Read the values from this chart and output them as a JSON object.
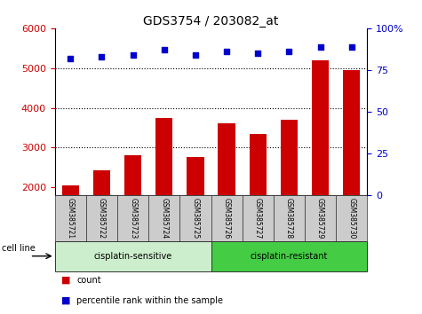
{
  "title": "GDS3754 / 203082_at",
  "samples": [
    "GSM385721",
    "GSM385722",
    "GSM385723",
    "GSM385724",
    "GSM385725",
    "GSM385726",
    "GSM385727",
    "GSM385728",
    "GSM385729",
    "GSM385730"
  ],
  "bar_values": [
    2050,
    2420,
    2800,
    3750,
    2770,
    3600,
    3350,
    3700,
    5200,
    4950
  ],
  "percentile_values": [
    82,
    83,
    84,
    87,
    84,
    86,
    85,
    86,
    89,
    89
  ],
  "bar_color": "#cc0000",
  "dot_color": "#0000cc",
  "ylim_left": [
    1800,
    6000
  ],
  "ylim_right": [
    0,
    100
  ],
  "yticks_left": [
    2000,
    3000,
    4000,
    5000,
    6000
  ],
  "yticks_right": [
    0,
    25,
    50,
    75,
    100
  ],
  "grid_values": [
    3000,
    4000,
    5000
  ],
  "group1_label": "cisplatin-sensitive",
  "group2_label": "cisplatin-resistant",
  "group1_count": 5,
  "group2_count": 5,
  "cell_line_label": "cell line",
  "legend_count": "count",
  "legend_percentile": "percentile rank within the sample",
  "tick_label_color_left": "#cc0000",
  "tick_label_color_right": "#0000cc",
  "group1_bg": "#cceecc",
  "group2_bg": "#44cc44",
  "sample_label_bg": "#cccccc",
  "figwidth": 4.75,
  "figheight": 3.54,
  "dpi": 100
}
